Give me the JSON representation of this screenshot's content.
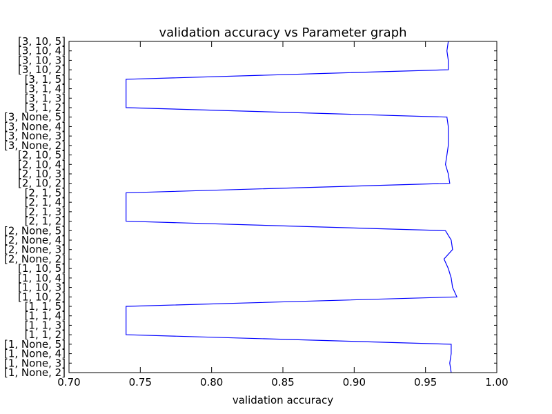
{
  "chart_data": {
    "type": "line",
    "orientation": "horizontal",
    "title": "validation accuracy vs Parameter graph",
    "xlabel": "validation accuracy",
    "ylabel": "",
    "xlim": [
      0.7,
      1.0
    ],
    "xticks": [
      "0.70",
      "0.75",
      "0.80",
      "0.85",
      "0.90",
      "0.95",
      "1.00"
    ],
    "grid": false,
    "legend": "none",
    "line_color": "#0000ff",
    "categories": [
      "[1, None, 2]",
      "[1, None, 3]",
      "[1, None, 4]",
      "[1, None, 5]",
      "[1, 1, 2]",
      "[1, 1, 3]",
      "[1, 1, 4]",
      "[1, 1, 5]",
      "[1, 10, 2]",
      "[1, 10, 3]",
      "[1, 10, 4]",
      "[1, 10, 5]",
      "[2, None, 2]",
      "[2, None, 3]",
      "[2, None, 4]",
      "[2, None, 5]",
      "[2, 1, 2]",
      "[2, 1, 3]",
      "[2, 1, 4]",
      "[2, 1, 5]",
      "[2, 10, 2]",
      "[2, 10, 3]",
      "[2, 10, 4]",
      "[2, 10, 5]",
      "[3, None, 2]",
      "[3, None, 3]",
      "[3, None, 4]",
      "[3, None, 5]",
      "[3, 1, 2]",
      "[3, 1, 3]",
      "[3, 1, 4]",
      "[3, 1, 5]",
      "[3, 10, 2]",
      "[3, 10, 3]",
      "[3, 10, 4]",
      "[3, 10, 5]"
    ],
    "series": [
      {
        "values": [
          0.968,
          0.967,
          0.968,
          0.968,
          0.74,
          0.74,
          0.74,
          0.74,
          0.972,
          0.969,
          0.968,
          0.966,
          0.963,
          0.969,
          0.968,
          0.964,
          0.74,
          0.74,
          0.74,
          0.74,
          0.967,
          0.966,
          0.964,
          0.965,
          0.966,
          0.966,
          0.966,
          0.965,
          0.74,
          0.74,
          0.74,
          0.74,
          0.966,
          0.966,
          0.965,
          0.966
        ]
      }
    ]
  }
}
